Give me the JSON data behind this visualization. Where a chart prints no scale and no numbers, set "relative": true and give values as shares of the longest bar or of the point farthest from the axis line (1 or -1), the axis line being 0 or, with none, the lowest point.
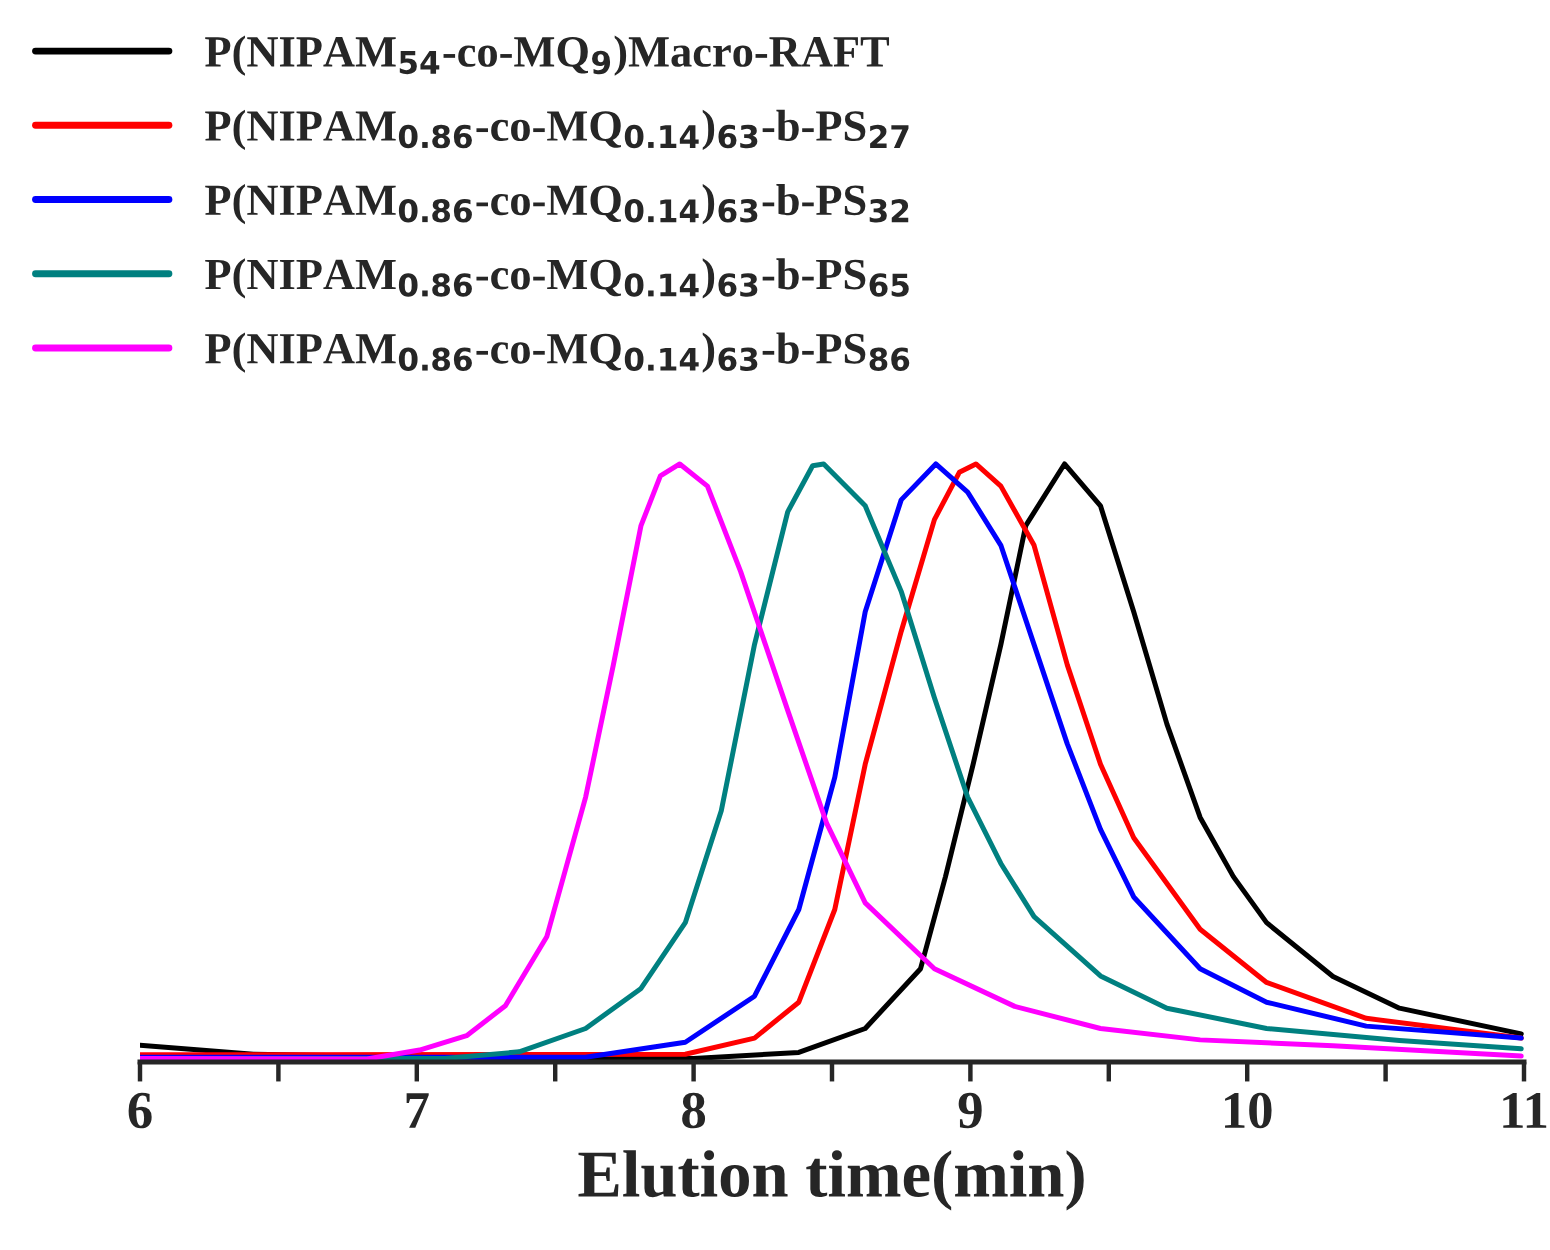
{
  "chart_data": {
    "type": "line",
    "relative": true,
    "xlabel": "Elution time(min)",
    "xlim": [
      6,
      11
    ],
    "xticks": [
      6,
      {
        "value": 6.5,
        "label": null
      },
      7,
      {
        "value": 7.5,
        "label": null
      },
      8,
      {
        "value": 8.5,
        "label": null
      },
      9,
      {
        "value": 9.5,
        "label": null
      },
      10,
      {
        "value": 10.5,
        "label": null
      },
      11
    ],
    "legend": "top left",
    "grid": false,
    "marker": "none",
    "line_style": "solid",
    "series": [
      {
        "name": "P(NIPAM$_{54}$-co-MQ$_{9}$)Macro-RAFT",
        "color": "#000000",
        "x": [
          6,
          6.41,
          6.89,
          7.5,
          8.0,
          8.38,
          8.62,
          8.82,
          8.91,
          9.01,
          9.11,
          9.2,
          9.34,
          9.47,
          9.59,
          9.71,
          9.83,
          9.95,
          10.07,
          10.31,
          10.55,
          10.99
        ],
        "values": [
          0.028,
          0.013,
          0.009,
          0.007,
          0.006,
          0.016,
          0.056,
          0.156,
          0.31,
          0.498,
          0.698,
          0.897,
          1,
          0.93,
          0.753,
          0.565,
          0.409,
          0.31,
          0.233,
          0.143,
          0.09,
          0.047
        ]
      },
      {
        "name": "P(NIPAM$_{0.86}$-co-MQ$_{0.14}$)$_{63}$-b-PS$_{27}$",
        "color": "#ff0000",
        "x": [
          6,
          7.97,
          8.22,
          8.38,
          8.51,
          8.62,
          8.75,
          8.87,
          8.96,
          9.02,
          9.11,
          9.23,
          9.35,
          9.47,
          9.59,
          9.83,
          10.07,
          10.43,
          10.99
        ],
        "values": [
          0.012,
          0.013,
          0.04,
          0.1,
          0.255,
          0.498,
          0.72,
          0.907,
          0.986,
          1,
          0.963,
          0.864,
          0.664,
          0.498,
          0.375,
          0.222,
          0.133,
          0.073,
          0.04
        ]
      },
      {
        "name": "P(NIPAM$_{0.86}$-co-MQ$_{0.14}$)$_{63}$-b-PS$_{32}$",
        "color": "#0000ff",
        "x": [
          6,
          7.61,
          7.97,
          8.22,
          8.38,
          8.51,
          8.62,
          8.75,
          8.875,
          8.99,
          9.11,
          9.23,
          9.35,
          9.47,
          9.59,
          9.83,
          10.07,
          10.43,
          10.99
        ],
        "values": [
          0.008,
          0.008,
          0.033,
          0.11,
          0.255,
          0.476,
          0.753,
          0.94,
          1,
          0.953,
          0.864,
          0.698,
          0.532,
          0.389,
          0.276,
          0.156,
          0.1,
          0.06,
          0.04
        ]
      },
      {
        "name": "P(NIPAM$_{0.86}$-co-MQ$_{0.14}$)$_{63}$-b-PS$_{65}$",
        "color": "#008080",
        "x": [
          6,
          7.1,
          7.37,
          7.61,
          7.81,
          7.97,
          8.1,
          8.22,
          8.34,
          8.43,
          8.47,
          8.62,
          8.75,
          8.87,
          8.99,
          9.11,
          9.23,
          9.47,
          9.71,
          10.07,
          10.55,
          10.99
        ],
        "values": [
          0.006,
          0.006,
          0.017,
          0.056,
          0.123,
          0.233,
          0.42,
          0.698,
          0.92,
          0.997,
          1,
          0.93,
          0.787,
          0.609,
          0.443,
          0.332,
          0.243,
          0.144,
          0.09,
          0.056,
          0.036,
          0.022
        ]
      },
      {
        "name": "P(NIPAM$_{0.86}$-co-MQ$_{0.14}$)$_{63}$-b-PS$_{86}$",
        "color": "#ff00ff",
        "x": [
          6,
          6.82,
          7.01,
          7.18,
          7.32,
          7.47,
          7.61,
          7.71,
          7.81,
          7.88,
          7.95,
          8.05,
          8.17,
          8.34,
          8.48,
          8.62,
          8.87,
          9.16,
          9.47,
          9.83,
          10.31,
          10.99
        ],
        "values": [
          0.006,
          0.005,
          0.02,
          0.044,
          0.094,
          0.21,
          0.443,
          0.664,
          0.897,
          0.98,
          1,
          0.963,
          0.82,
          0.588,
          0.4,
          0.266,
          0.156,
          0.093,
          0.056,
          0.037,
          0.027,
          0.01
        ]
      }
    ]
  }
}
